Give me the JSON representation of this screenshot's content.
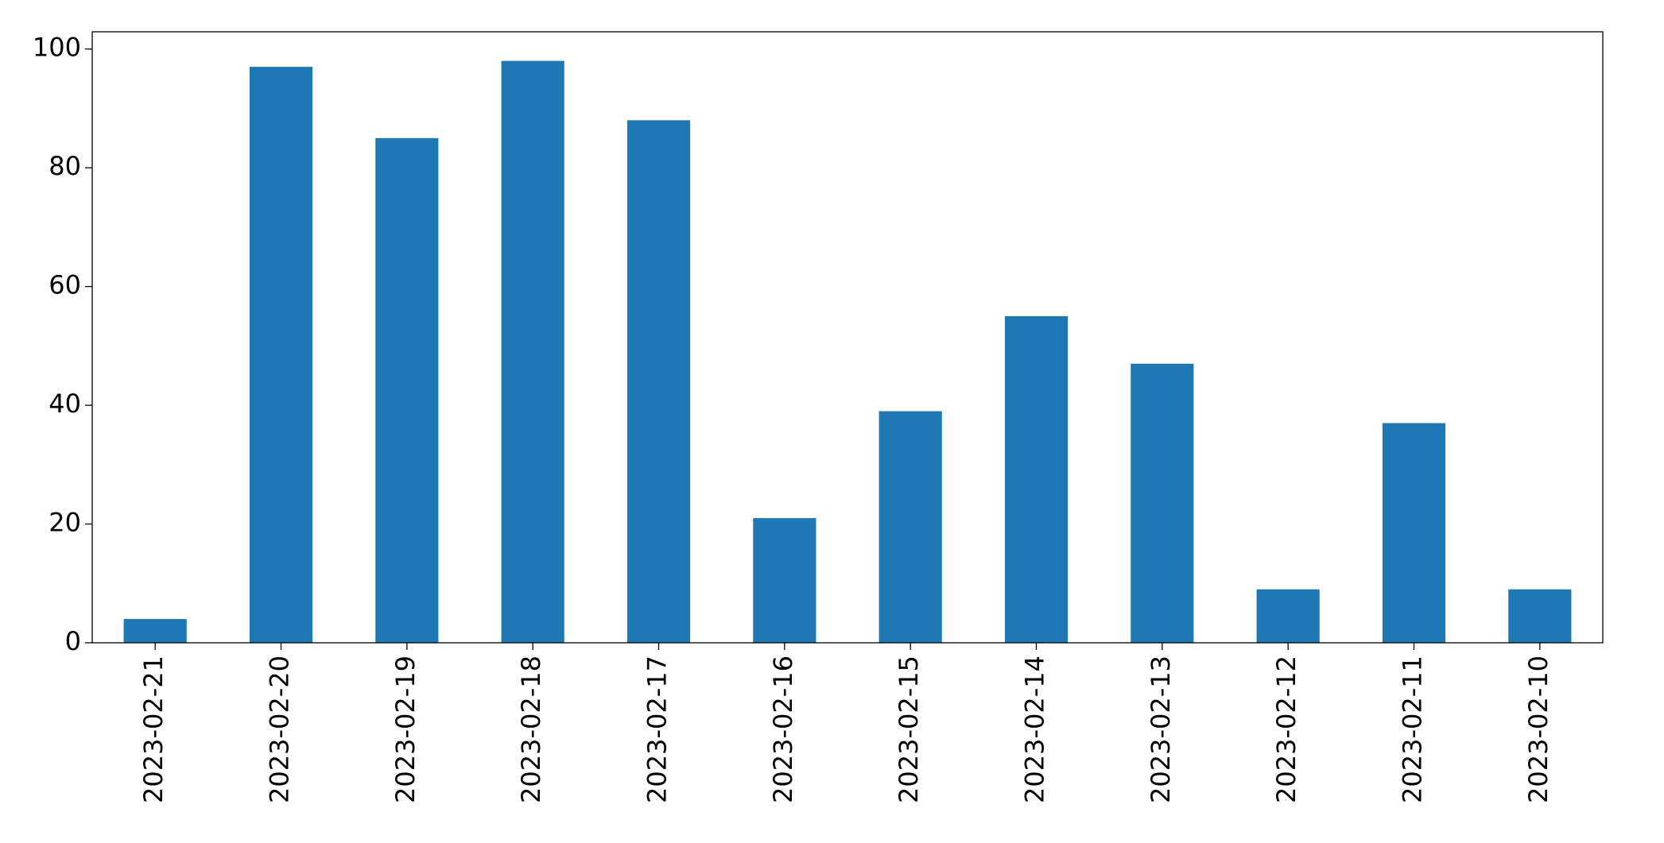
{
  "chart_data": {
    "type": "bar",
    "categories": [
      "2023-02-21",
      "2023-02-20",
      "2023-02-19",
      "2023-02-18",
      "2023-02-17",
      "2023-02-16",
      "2023-02-15",
      "2023-02-14",
      "2023-02-13",
      "2023-02-12",
      "2023-02-11",
      "2023-02-10"
    ],
    "values": [
      4,
      97,
      85,
      98,
      88,
      21,
      39,
      55,
      47,
      9,
      37,
      9
    ],
    "color": "#1f77b4",
    "ylim": [
      0,
      102.9
    ],
    "yticks": [
      0,
      20,
      40,
      60,
      80,
      100
    ],
    "grid": false
  }
}
